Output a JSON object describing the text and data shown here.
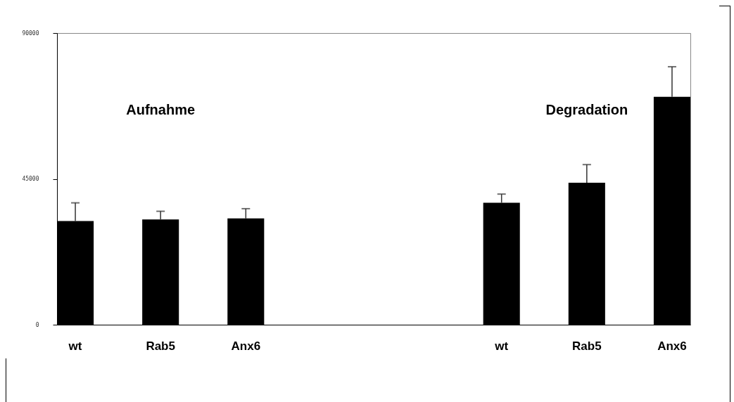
{
  "chart_data": {
    "type": "bar",
    "categories": [
      "wt",
      "Rab5",
      "Anx6",
      null,
      null,
      "wt",
      "Rab5",
      "Anx6"
    ],
    "values": [
      32000,
      32500,
      32800,
      null,
      null,
      37600,
      43800,
      70300
    ],
    "errors": [
      [
        32000,
        37600
      ],
      [
        32500,
        35000
      ],
      [
        32800,
        35800
      ],
      null,
      null,
      [
        37600,
        40300
      ],
      [
        43800,
        49400
      ],
      [
        70300,
        79600
      ]
    ],
    "color": "#000000",
    "ylim": [
      0,
      90000
    ],
    "yticks": [
      0,
      45000,
      90000
    ],
    "grid": false,
    "annotations": [
      "Aufnahme",
      "Degradation"
    ]
  }
}
